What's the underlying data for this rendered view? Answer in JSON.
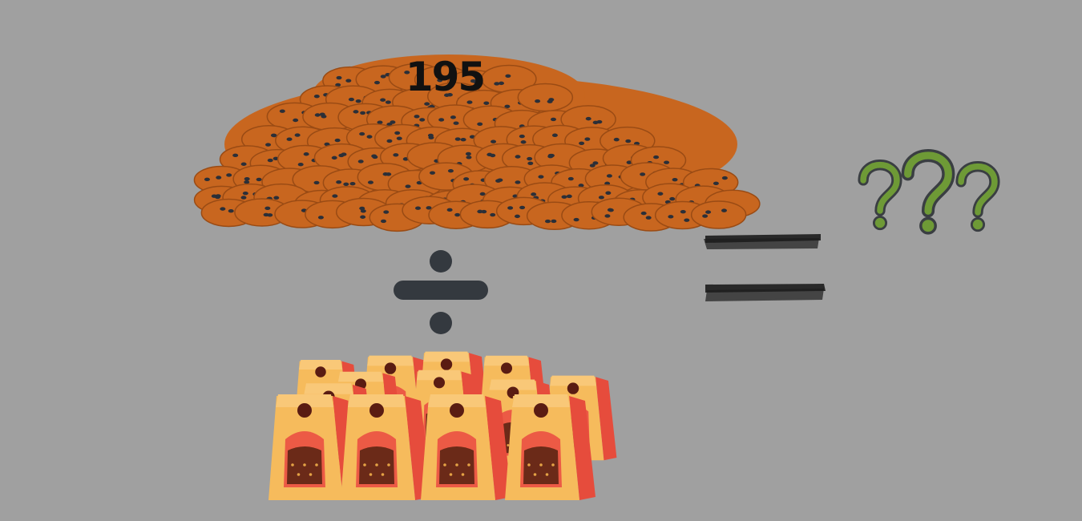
{
  "cookie_pile": {
    "count": "195",
    "cookie_color": "#c8661f",
    "chip_color": "#2b2f38"
  },
  "operator": {
    "name": "division-sign",
    "color": "#34393f"
  },
  "equals": {
    "name": "chalk-equals-sign",
    "color": "#1c1c1c"
  },
  "answer": {
    "question_marks": 3,
    "color": "#6e9a36",
    "outline_color": "#3a3e42"
  },
  "bags": {
    "count": 12,
    "bag_color": "#f6bb5c",
    "side_color": "#e64c3c",
    "window_color": "#ec5a45",
    "cookies_color": "#6b2a18"
  }
}
